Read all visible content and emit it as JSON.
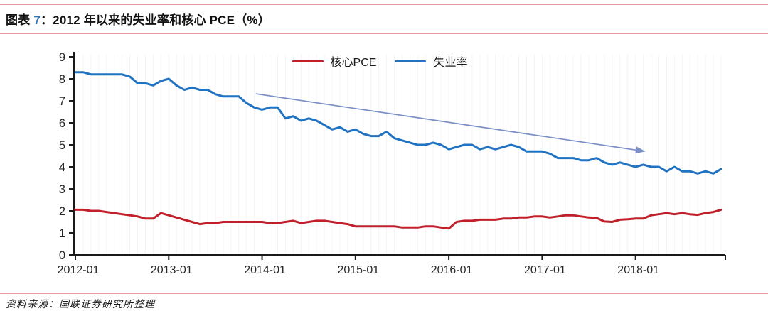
{
  "figure": {
    "title_prefix": "图表 ",
    "title_number": "7",
    "title_rest": "：2012 年以来的失业率和核心 PCE（%）",
    "source_note": "资料来源：国联证券研究所整理"
  },
  "colors": {
    "pce_line": "#c1202a",
    "unemployment_line": "#1f73c2",
    "trend_arrow": "#7b8fc7",
    "axis": "#1a1a1a",
    "tick_label": "#262626",
    "rule_pink": "#e39aa4",
    "title_number_blue": "#2e74b5",
    "gridline": "#f4f4f4"
  },
  "chart_data": {
    "type": "line",
    "title": "2012 年以来的失业率和核心 PCE（%）",
    "x_range": [
      "2012-01",
      "2018-12"
    ],
    "frequency": "monthly",
    "x_tick_labels": [
      "2012-01",
      "2013-01",
      "2014-01",
      "2015-01",
      "2016-01",
      "2017-01",
      "2018-01"
    ],
    "x_tick_month_index": [
      0,
      12,
      24,
      36,
      48,
      60,
      72
    ],
    "y_ticks": [
      0,
      1,
      2,
      3,
      4,
      5,
      6,
      7,
      8,
      9
    ],
    "ylim": [
      0,
      9
    ],
    "xlabel": "",
    "ylabel": "",
    "grid": "faint vertical monthly gridlines",
    "legend_position": "top-center",
    "series": [
      {
        "name": "核心PCE",
        "color": "#c1202a",
        "values": [
          2.05,
          2.05,
          2.0,
          2.0,
          1.95,
          1.9,
          1.85,
          1.8,
          1.75,
          1.65,
          1.65,
          1.9,
          1.8,
          1.7,
          1.6,
          1.5,
          1.4,
          1.45,
          1.45,
          1.5,
          1.5,
          1.5,
          1.5,
          1.5,
          1.5,
          1.45,
          1.45,
          1.5,
          1.55,
          1.45,
          1.5,
          1.55,
          1.55,
          1.5,
          1.45,
          1.4,
          1.3,
          1.3,
          1.3,
          1.3,
          1.3,
          1.3,
          1.25,
          1.25,
          1.25,
          1.3,
          1.3,
          1.25,
          1.2,
          1.5,
          1.55,
          1.55,
          1.6,
          1.6,
          1.6,
          1.65,
          1.65,
          1.7,
          1.7,
          1.75,
          1.75,
          1.7,
          1.75,
          1.8,
          1.8,
          1.75,
          1.7,
          1.68,
          1.52,
          1.5,
          1.6,
          1.62,
          1.65,
          1.65,
          1.8,
          1.85,
          1.9,
          1.85,
          1.9,
          1.85,
          1.82,
          1.9,
          1.95,
          2.05
        ]
      },
      {
        "name": "失业率",
        "color": "#1f73c2",
        "values": [
          8.3,
          8.3,
          8.2,
          8.2,
          8.2,
          8.2,
          8.2,
          8.1,
          7.8,
          7.8,
          7.7,
          7.9,
          8.0,
          7.7,
          7.5,
          7.6,
          7.5,
          7.5,
          7.3,
          7.2,
          7.2,
          7.2,
          6.9,
          6.7,
          6.6,
          6.7,
          6.7,
          6.2,
          6.3,
          6.1,
          6.2,
          6.1,
          5.9,
          5.7,
          5.8,
          5.6,
          5.7,
          5.5,
          5.4,
          5.4,
          5.6,
          5.3,
          5.2,
          5.1,
          5.0,
          5.0,
          5.1,
          5.0,
          4.8,
          4.9,
          5.0,
          5.0,
          4.8,
          4.9,
          4.8,
          4.9,
          5.0,
          4.9,
          4.7,
          4.7,
          4.7,
          4.6,
          4.4,
          4.4,
          4.4,
          4.3,
          4.3,
          4.4,
          4.2,
          4.1,
          4.2,
          4.1,
          4.0,
          4.1,
          4.0,
          4.0,
          3.8,
          4.0,
          3.8,
          3.8,
          3.7,
          3.8,
          3.7,
          3.9
        ]
      }
    ],
    "annotation_arrow": {
      "description": "downward trend arrow over unemployment line",
      "x1_month_index": 23.2,
      "y1": 7.32,
      "x2_month_index": 73.3,
      "y2": 4.7,
      "color": "#7b8fc7"
    }
  }
}
